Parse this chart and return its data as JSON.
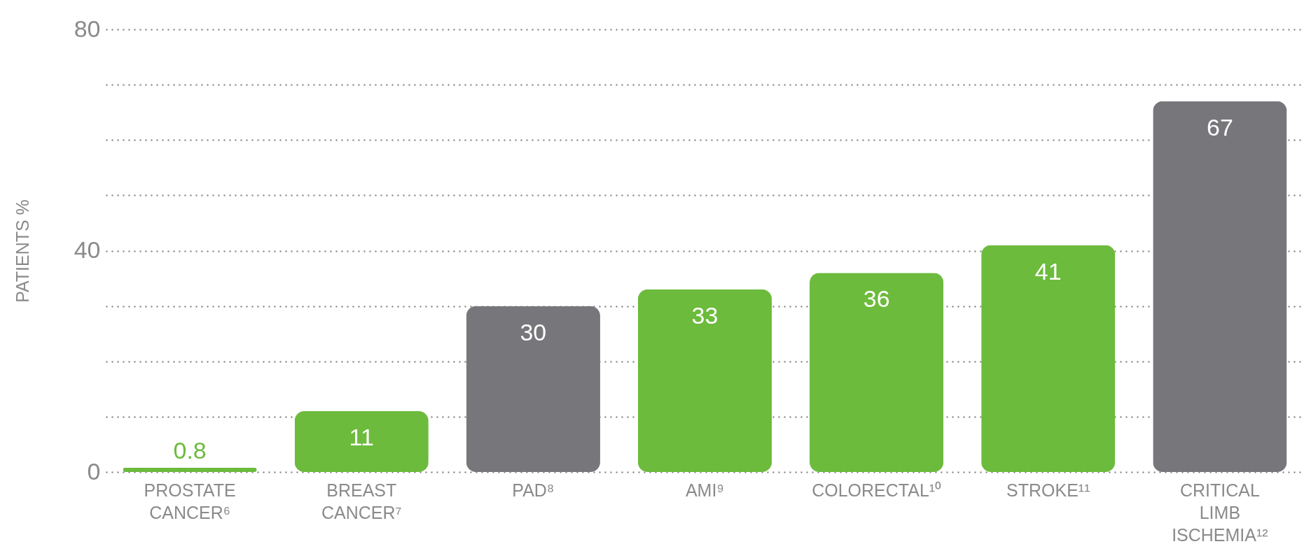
{
  "chart_data": {
    "type": "bar",
    "ylabel": "PATIENTS %",
    "categories": [
      "PROSTATE CANCER⁶",
      "BREAST CANCER⁷",
      "PAD⁸",
      "AMI⁹",
      "COLORECTAL¹⁰",
      "STROKE¹¹",
      "CRITICAL LIMB ISCHEMIA¹²"
    ],
    "values": [
      0.8,
      11,
      30,
      33,
      36,
      41,
      67
    ],
    "colors": [
      "#6cbb3c",
      "#6cbb3c",
      "#77777b",
      "#6cbb3c",
      "#6cbb3c",
      "#6cbb3c",
      "#77777b"
    ],
    "ylim": [
      0,
      80
    ],
    "yticks": [
      0,
      {
        "value": 10,
        "label": null
      },
      {
        "value": 20,
        "label": null
      },
      {
        "value": 30,
        "label": null
      },
      40,
      {
        "value": 50,
        "label": null
      },
      {
        "value": 60,
        "label": null
      },
      {
        "value": 70,
        "label": null
      },
      80
    ],
    "grid": "y",
    "data_labels": true
  }
}
